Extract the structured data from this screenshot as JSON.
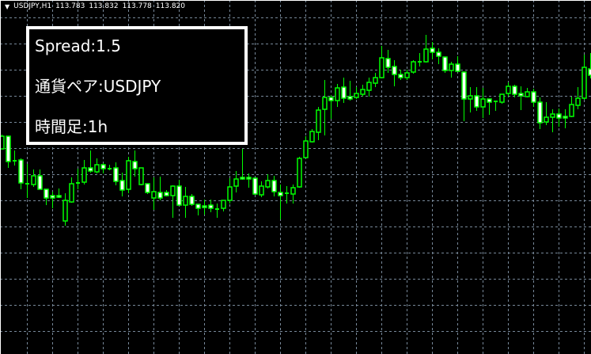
{
  "header": {
    "symbol_timeframe": "USDJPY,H1",
    "open": "113.783",
    "high": "113.832",
    "low": "113.778",
    "close": "113.820"
  },
  "info_panel": {
    "spread": "Spread:1.5",
    "pair": "通貨ペア:USDJPY",
    "timeframe": "時間足:1h"
  },
  "colors": {
    "background": "#000000",
    "grid": "#778899",
    "candle_outline": "#00ff00",
    "bear_body": "#ffffff",
    "bull_body": "#000000",
    "panel_border": "#ffffff"
  },
  "chart_data": {
    "type": "candlestick",
    "symbol": "USDJPY",
    "timeframe": "H1",
    "grid": true,
    "ylim": [
      113.553,
      114.0
    ],
    "candles_ohlc": [
      [
        113.812,
        113.83,
        113.812,
        113.828
      ],
      [
        113.828,
        113.828,
        113.788,
        113.796
      ],
      [
        113.797,
        113.81,
        113.791,
        113.797
      ],
      [
        113.798,
        113.8,
        113.761,
        113.769
      ],
      [
        113.768,
        113.793,
        113.75,
        113.767
      ],
      [
        113.767,
        113.786,
        113.764,
        113.778
      ],
      [
        113.778,
        113.786,
        113.761,
        113.761
      ],
      [
        113.761,
        113.761,
        113.741,
        113.75
      ],
      [
        113.753,
        113.758,
        113.737,
        113.75
      ],
      [
        113.753,
        113.762,
        113.75,
        113.751
      ],
      [
        113.721,
        113.756,
        113.715,
        113.747
      ],
      [
        113.745,
        113.776,
        113.744,
        113.768
      ],
      [
        113.768,
        113.787,
        113.761,
        113.769
      ],
      [
        113.77,
        113.798,
        113.767,
        113.788
      ],
      [
        113.788,
        113.81,
        113.782,
        113.784
      ],
      [
        113.783,
        113.8,
        113.781,
        113.792
      ],
      [
        113.792,
        113.794,
        113.781,
        113.787
      ],
      [
        113.787,
        113.792,
        113.785,
        113.786
      ],
      [
        113.788,
        113.795,
        113.766,
        113.771
      ],
      [
        113.772,
        113.782,
        113.752,
        113.76
      ],
      [
        113.761,
        113.802,
        113.756,
        113.797
      ],
      [
        113.796,
        113.81,
        113.777,
        113.787
      ],
      [
        113.767,
        113.788,
        113.766,
        113.788
      ],
      [
        113.768,
        113.768,
        113.755,
        113.757
      ],
      [
        113.75,
        113.776,
        113.735,
        113.758
      ],
      [
        113.757,
        113.777,
        113.747,
        113.75
      ],
      [
        113.757,
        113.76,
        113.752,
        113.753
      ],
      [
        113.753,
        113.766,
        113.725,
        113.765
      ],
      [
        113.765,
        113.773,
        113.741,
        113.741
      ],
      [
        113.741,
        113.764,
        113.725,
        113.752
      ],
      [
        113.752,
        113.755,
        113.74,
        113.742
      ],
      [
        113.742,
        113.742,
        113.728,
        113.737
      ],
      [
        113.74,
        113.748,
        113.729,
        113.738
      ],
      [
        113.741,
        113.748,
        113.732,
        113.737
      ],
      [
        113.736,
        113.743,
        113.725,
        113.735
      ],
      [
        113.737,
        113.747,
        113.733,
        113.747
      ],
      [
        113.747,
        113.775,
        113.743,
        113.764
      ],
      [
        113.765,
        113.784,
        113.757,
        113.774
      ],
      [
        113.776,
        113.812,
        113.773,
        113.774
      ],
      [
        113.776,
        113.781,
        113.763,
        113.774
      ],
      [
        113.775,
        113.775,
        113.754,
        113.755
      ],
      [
        113.754,
        113.771,
        113.751,
        113.765
      ],
      [
        113.764,
        113.78,
        113.762,
        113.772
      ],
      [
        113.772,
        113.778,
        113.752,
        113.758
      ],
      [
        113.757,
        113.767,
        113.723,
        113.753
      ],
      [
        113.756,
        113.765,
        113.743,
        113.755
      ],
      [
        113.755,
        113.767,
        113.743,
        113.763
      ],
      [
        113.764,
        113.802,
        113.763,
        113.8
      ],
      [
        113.801,
        113.828,
        113.801,
        113.822
      ],
      [
        113.821,
        113.837,
        113.82,
        113.834
      ],
      [
        113.833,
        113.865,
        113.823,
        113.861
      ],
      [
        113.862,
        113.899,
        113.829,
        113.877
      ],
      [
        113.877,
        113.88,
        113.85,
        113.873
      ],
      [
        113.873,
        113.894,
        113.865,
        113.889
      ],
      [
        113.89,
        113.902,
        113.87,
        113.876
      ],
      [
        113.878,
        113.898,
        113.873,
        113.875
      ],
      [
        113.877,
        113.89,
        113.875,
        113.882
      ],
      [
        113.881,
        113.893,
        113.878,
        113.887
      ],
      [
        113.886,
        113.902,
        113.878,
        113.896
      ],
      [
        113.895,
        113.908,
        113.89,
        113.902
      ],
      [
        113.902,
        113.942,
        113.901,
        113.927
      ],
      [
        113.926,
        113.937,
        113.908,
        113.915
      ],
      [
        113.916,
        113.924,
        113.891,
        113.906
      ],
      [
        113.906,
        113.912,
        113.899,
        113.902
      ],
      [
        113.902,
        113.912,
        113.899,
        113.908
      ],
      [
        113.909,
        113.924,
        113.907,
        113.922
      ],
      [
        113.922,
        113.933,
        113.916,
        113.921
      ],
      [
        113.922,
        113.956,
        113.921,
        113.938
      ],
      [
        113.939,
        113.947,
        113.925,
        113.934
      ],
      [
        113.934,
        113.939,
        113.919,
        113.929
      ],
      [
        113.928,
        113.928,
        113.908,
        113.911
      ],
      [
        113.911,
        113.922,
        113.902,
        113.919
      ],
      [
        113.919,
        113.929,
        113.91,
        113.91
      ],
      [
        113.909,
        113.909,
        113.847,
        113.875
      ],
      [
        113.875,
        113.89,
        113.858,
        113.879
      ],
      [
        113.879,
        113.89,
        113.86,
        113.865
      ],
      [
        113.865,
        113.889,
        113.851,
        113.875
      ],
      [
        113.875,
        113.875,
        113.855,
        113.871
      ],
      [
        113.872,
        113.873,
        113.86,
        113.871
      ],
      [
        113.871,
        113.881,
        113.869,
        113.881
      ],
      [
        113.882,
        113.896,
        113.878,
        113.891
      ],
      [
        113.891,
        113.893,
        113.877,
        113.881
      ],
      [
        113.882,
        113.891,
        113.861,
        113.879
      ],
      [
        113.878,
        113.889,
        113.877,
        113.884
      ],
      [
        113.884,
        113.888,
        113.865,
        113.871
      ],
      [
        113.871,
        113.877,
        113.837,
        113.845
      ],
      [
        113.846,
        113.871,
        113.842,
        113.852
      ],
      [
        113.852,
        113.862,
        113.833,
        113.856
      ],
      [
        113.856,
        113.863,
        113.84,
        113.851
      ],
      [
        113.853,
        113.862,
        113.838,
        113.851
      ],
      [
        113.853,
        113.878,
        113.852,
        113.868
      ],
      [
        113.867,
        113.89,
        113.862,
        113.876
      ],
      [
        113.876,
        113.931,
        113.874,
        113.915
      ],
      [
        113.913,
        113.933,
        113.901,
        113.905
      ]
    ]
  }
}
